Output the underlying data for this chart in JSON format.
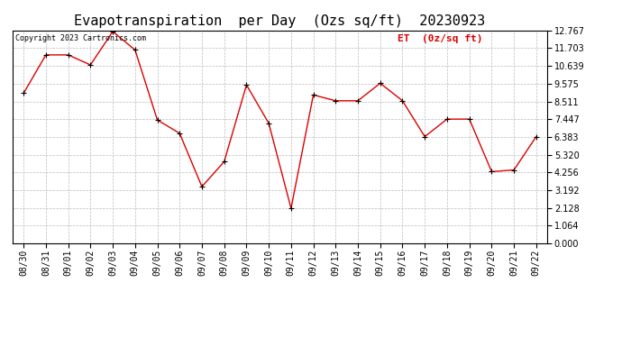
{
  "title": "Evapotranspiration  per Day  (Ozs sq/ft)  20230923",
  "copyright": "Copyright 2023 Cartronics.com",
  "legend_label": "ET  (0z/sq ft)",
  "dates": [
    "08/30",
    "08/31",
    "09/01",
    "09/02",
    "09/03",
    "09/04",
    "09/05",
    "09/06",
    "09/07",
    "09/08",
    "09/09",
    "09/10",
    "09/11",
    "09/12",
    "09/13",
    "09/14",
    "09/15",
    "09/16",
    "09/17",
    "09/18",
    "09/19",
    "09/20",
    "09/21",
    "09/22"
  ],
  "values": [
    9.0,
    11.3,
    11.3,
    10.7,
    12.7,
    11.6,
    7.4,
    6.6,
    3.4,
    4.9,
    9.5,
    7.2,
    2.1,
    8.9,
    8.55,
    8.55,
    9.6,
    8.55,
    6.4,
    7.45,
    7.45,
    4.3,
    4.4,
    6.4
  ],
  "line_color": "#dd0000",
  "marker_color": "#000000",
  "grid_color": "#bbbbbb",
  "bg_color": "#ffffff",
  "title_color": "#000000",
  "copyright_color": "#000000",
  "legend_color": "#dd0000",
  "ylim": [
    0.0,
    12.767
  ],
  "yticks": [
    0.0,
    1.064,
    2.128,
    3.192,
    4.256,
    5.32,
    6.383,
    7.447,
    8.511,
    9.575,
    10.639,
    11.703,
    12.767
  ],
  "title_fontsize": 11,
  "copyright_fontsize": 6,
  "legend_fontsize": 8,
  "tick_fontsize": 7
}
